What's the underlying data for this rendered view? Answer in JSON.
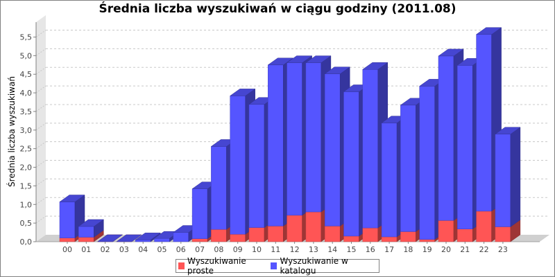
{
  "chart_data": {
    "type": "bar",
    "stacked": true,
    "rendering": "3d",
    "title": "Średnia liczba wyszukiwań w ciągu godziny (2011.08)",
    "xlabel": "",
    "ylabel": "Średnia liczba wyszukiwań",
    "ylim": [
      0,
      5.9
    ],
    "yticks": [
      0.0,
      0.5,
      1.0,
      1.5,
      2.0,
      2.5,
      3.0,
      3.5,
      4.0,
      4.5,
      5.0,
      5.5
    ],
    "ytick_labels": [
      "0,0",
      "0,5",
      "1,0",
      "1,5",
      "2,0",
      "2,5",
      "3,0",
      "3,5",
      "4,0",
      "4,5",
      "5,0",
      "5,5"
    ],
    "grid": true,
    "legend_position": "bottom",
    "categories": [
      "00",
      "01",
      "02",
      "03",
      "04",
      "05",
      "06",
      "07",
      "08",
      "09",
      "10",
      "11",
      "12",
      "13",
      "14",
      "15",
      "16",
      "17",
      "18",
      "19",
      "20",
      "21",
      "22",
      "23"
    ],
    "series": [
      {
        "name": "Wyszukiwanie proste",
        "color": "#ff5555",
        "values": [
          0.1,
          0.12,
          0,
          0,
          0,
          0,
          0,
          0.08,
          0.33,
          0.2,
          0.38,
          0.42,
          0.71,
          0.8,
          0.42,
          0.15,
          0.37,
          0.13,
          0.27,
          0.06,
          0.57,
          0.34,
          0.82,
          0.4
        ]
      },
      {
        "name": "Wyszukiwanie w katalogu",
        "color": "#5555ff",
        "values": [
          0.97,
          0.29,
          0.0,
          0.0,
          0.05,
          0.09,
          0.25,
          1.34,
          2.23,
          3.72,
          3.31,
          4.33,
          4.1,
          4.01,
          4.09,
          3.88,
          4.26,
          3.06,
          3.4,
          4.12,
          4.42,
          4.4,
          4.75,
          2.49
        ]
      }
    ]
  }
}
